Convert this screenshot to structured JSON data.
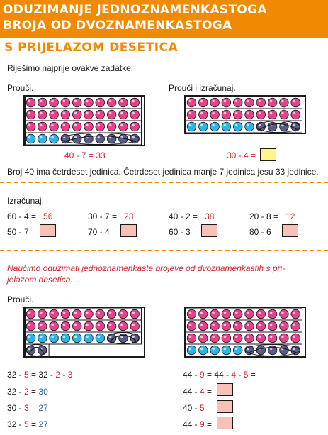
{
  "header": {
    "title_line1": "ODUZIMANJE JEDNOZNAMENKASTOGA",
    "title_line2": "BROJA OD DVOZNAMENKASTOGA",
    "subtitle": "S PRIJELAZOM DESETICA"
  },
  "intro": "Riješimo najprije ovakve zadatke:",
  "left_example": {
    "label": "Prouči.",
    "equation": "40 - 7 = 33"
  },
  "right_example": {
    "label": "Prouči i izračunaj.",
    "equation": "30 - 4 ="
  },
  "explanation": "Broj 40 ima četrdeset jedinica. Četrdeset jedinica manje 7 jedinica jesu 33 jedinice.",
  "calc": {
    "label": "Izračunaj.",
    "row1": [
      {
        "expr": "60 - 4 =",
        "answer": "56"
      },
      {
        "expr": "30 - 7 =",
        "answer": "23"
      },
      {
        "expr": "40 - 2 =",
        "answer": "38"
      },
      {
        "expr": "20 - 8 =",
        "answer": "12"
      }
    ],
    "row2": [
      {
        "expr": "50 - 7 ="
      },
      {
        "expr": "70 - 4 ="
      },
      {
        "expr": "60 - 3 ="
      },
      {
        "expr": "80 - 6 ="
      }
    ]
  },
  "lesson": {
    "line1": "Naučimo oduzimati jednoznamenkaste brojeve od dvoznamenkastih s pri-",
    "line2": "jelazom desetica:",
    "label": "Prouči."
  },
  "left_steps": [
    {
      "a": "32 - ",
      "b": "5",
      "c": " = 32 - ",
      "d": "2",
      "e": " - ",
      "f": "3"
    },
    {
      "a": "32 - ",
      "b": "2",
      "c": " = ",
      "d": "30"
    },
    {
      "a": "30 - ",
      "b": "3",
      "c": " = ",
      "d": "27"
    },
    {
      "a": "32 - ",
      "b": "5",
      "c": " = ",
      "d": "27"
    }
  ],
  "right_steps": [
    {
      "a": "44 - ",
      "b": "9",
      "c": " = 44 - ",
      "d": "4",
      "e": " - ",
      "f": "5",
      "g": " ="
    },
    {
      "a": "44 - ",
      "b": "4",
      "c": " ="
    },
    {
      "a": "40 - ",
      "b": "5",
      "c": " ="
    },
    {
      "a": "44 - ",
      "b": "9",
      "c": " ="
    }
  ],
  "colors": {
    "header_bg": "#f18a00",
    "pink_bead": "#e8408a",
    "blue_bead": "#2bb5e8",
    "crossed_bead": "#5a5a8a",
    "answer_box": "#f8c0b8",
    "answer_box_yellow": "#fff38a",
    "red_text": "#d9262b",
    "blue_text": "#1f63b5"
  }
}
